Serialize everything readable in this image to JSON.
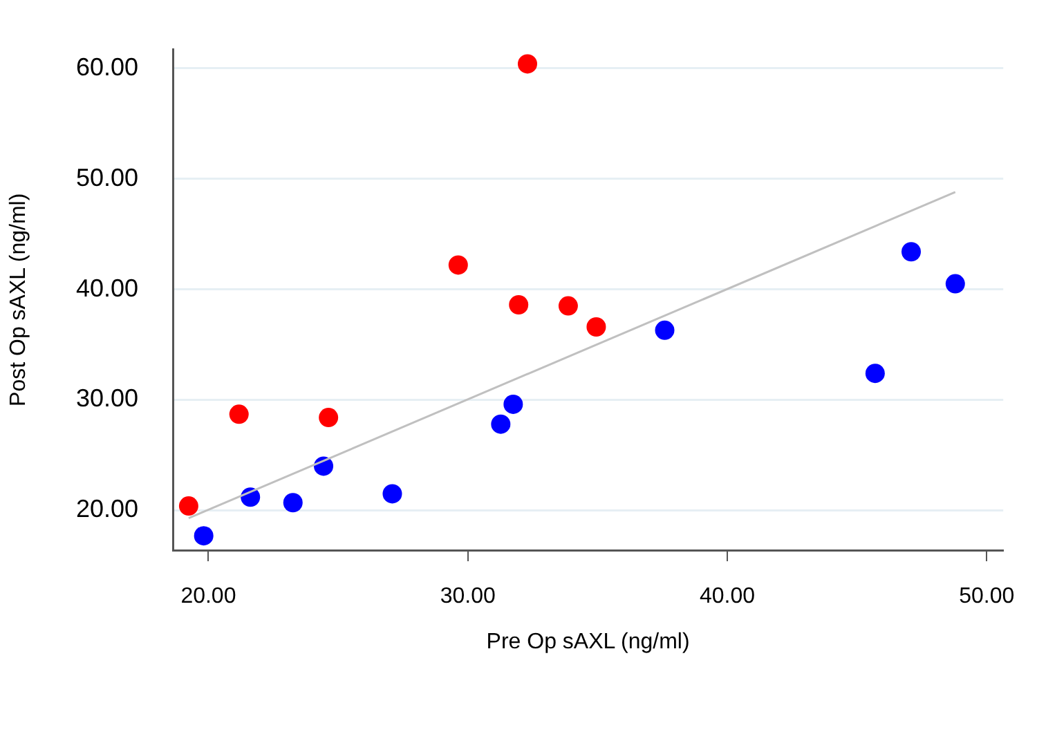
{
  "chart_data": {
    "type": "scatter",
    "xlabel": "Pre Op sAXL (ng/ml)",
    "ylabel": "Post Op sAXL (ng/ml)",
    "xlim": [
      18.63,
      50.64
    ],
    "xticks": [
      {
        "value": 20,
        "label": "20.00"
      },
      {
        "value": 30,
        "label": "30.00"
      },
      {
        "value": 40,
        "label": "40.00"
      },
      {
        "value": 50,
        "label": "50.00"
      }
    ],
    "ylim": [
      16.4,
      61.7
    ],
    "yticks": [
      {
        "value": 20,
        "label": "20.00"
      },
      {
        "value": 30,
        "label": "30.00"
      },
      {
        "value": 40,
        "label": "40.00"
      },
      {
        "value": 50,
        "label": "50.00"
      },
      {
        "value": 60,
        "label": "60.00"
      }
    ],
    "grid": "y",
    "legend": false,
    "marker": "circle",
    "series": [
      {
        "type": "line",
        "color": "#c0c0c0",
        "marker": "none",
        "x": [
          19.24,
          48.79
        ],
        "values": [
          19.3,
          48.8
        ]
      },
      {
        "color": "#ff0000",
        "x": [
          19.24,
          21.18,
          24.63,
          29.63,
          31.96,
          32.3,
          33.87,
          34.95
        ],
        "values": [
          20.4,
          28.7,
          28.4,
          42.2,
          38.6,
          60.4,
          38.5,
          36.6
        ]
      },
      {
        "color": "#0000ff",
        "x": [
          19.82,
          21.62,
          23.26,
          24.44,
          27.09,
          31.27,
          31.75,
          37.59,
          45.7,
          47.09,
          48.79
        ],
        "values": [
          17.7,
          21.2,
          20.7,
          24.0,
          21.5,
          27.8,
          29.6,
          36.3,
          32.4,
          43.4,
          40.5
        ]
      }
    ]
  }
}
